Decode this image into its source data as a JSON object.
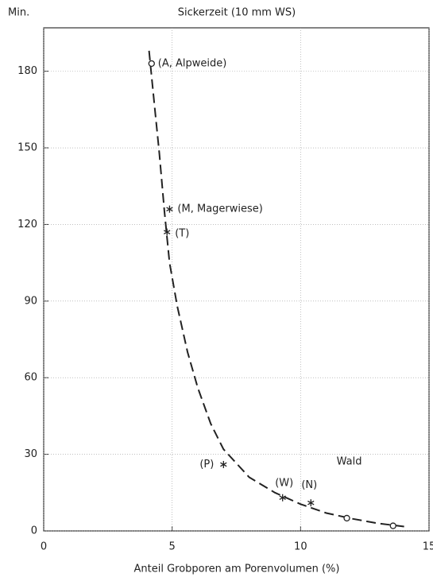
{
  "chart_data": {
    "type": "scatter",
    "title": "Sickerzeit (10 mm WS)",
    "y_unit": "Min.",
    "x_label": "Anteil Grobporen am Porenvolumen (%)",
    "xlim": [
      0,
      15
    ],
    "ylim": [
      0,
      197
    ],
    "xticks": [
      0,
      5,
      10,
      15
    ],
    "yticks": [
      0,
      30,
      60,
      90,
      120,
      150,
      180
    ],
    "grid": true,
    "color": "#222222",
    "points": [
      {
        "x": 4.2,
        "y": 183,
        "marker": "circle",
        "label": "(A, Alpweide)"
      },
      {
        "x": 4.9,
        "y": 126,
        "marker": "star",
        "label": "(M, Magerwiese)"
      },
      {
        "x": 4.8,
        "y": 117,
        "marker": "star",
        "label": "(T)"
      },
      {
        "x": 7.0,
        "y": 26,
        "marker": "star",
        "label": "(P)"
      },
      {
        "x": 9.3,
        "y": 13,
        "marker": "star",
        "label": "(W)"
      },
      {
        "x": 10.4,
        "y": 11,
        "marker": "star",
        "label": "(N)"
      },
      {
        "x": 11.8,
        "y": 5,
        "marker": "circle"
      },
      {
        "x": 13.6,
        "y": 2,
        "marker": "circle"
      }
    ],
    "curve": {
      "x": [
        4.1,
        4.3,
        4.5,
        4.7,
        4.9,
        5.2,
        5.6,
        6.0,
        6.5,
        7.0,
        8.0,
        9.0,
        10.0,
        11.0,
        12.0,
        13.0,
        14.2
      ],
      "values": [
        188,
        168,
        148,
        125,
        105,
        88,
        70,
        56,
        42,
        32,
        21,
        15,
        10.5,
        7,
        4.8,
        3,
        1.5
      ]
    },
    "annotations": [
      {
        "text": "Wald",
        "x": 11.4,
        "y": 27
      }
    ]
  }
}
